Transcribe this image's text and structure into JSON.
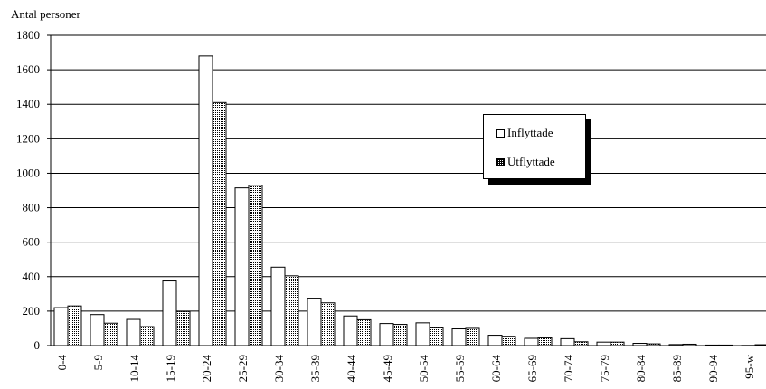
{
  "chart_data": {
    "type": "bar",
    "ylabel": "Antal personer",
    "ylim": [
      0,
      1800
    ],
    "yticks": [
      0,
      200,
      400,
      600,
      800,
      1000,
      1200,
      1400,
      1600,
      1800
    ],
    "grid": true,
    "legend_position": "right",
    "categories": [
      "0-4",
      "5-9",
      "10-14",
      "15-19",
      "20-24",
      "25-29",
      "30-34",
      "35-39",
      "40-44",
      "45-49",
      "50-54",
      "55-59",
      "60-64",
      "65-69",
      "70-74",
      "75-79",
      "80-84",
      "85-89",
      "90-94",
      "95-w"
    ],
    "series": [
      {
        "name": "Inflyttade",
        "pattern": "solid-white",
        "values": [
          220,
          180,
          152,
          375,
          1680,
          915,
          455,
          275,
          172,
          128,
          132,
          97,
          60,
          42,
          40,
          20,
          13,
          6,
          3,
          1
        ]
      },
      {
        "name": "Utflyttade",
        "pattern": "crosshatch",
        "values": [
          230,
          130,
          110,
          198,
          1410,
          930,
          405,
          248,
          150,
          123,
          103,
          100,
          54,
          45,
          22,
          20,
          10,
          8,
          3,
          5
        ]
      }
    ]
  }
}
